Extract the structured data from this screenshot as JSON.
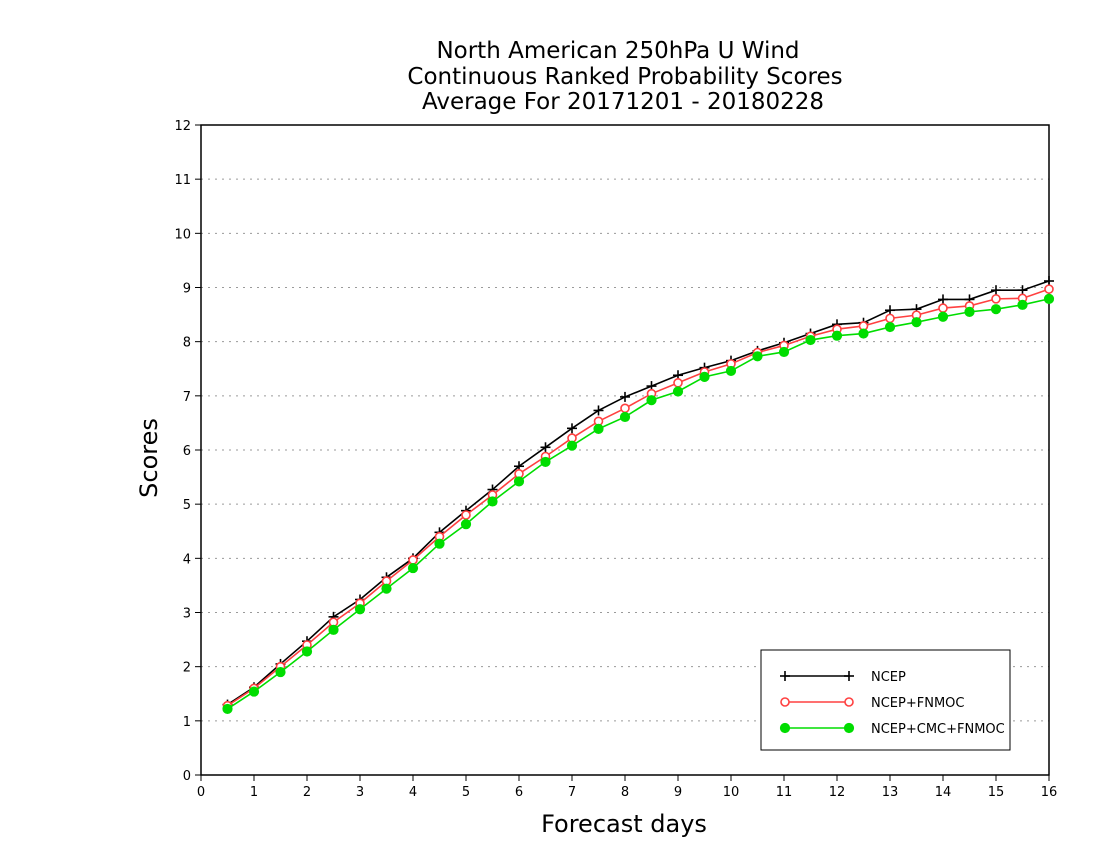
{
  "chart_data": {
    "type": "line",
    "title": [
      "North American 250hPa U Wind",
      "Continuous Ranked Probability Scores",
      "Average For 20171201 - 20180228"
    ],
    "xlabel": "Forecast days",
    "ylabel": "Scores",
    "xlim": [
      0,
      16
    ],
    "ylim": [
      0,
      12
    ],
    "xticks": [
      0,
      1,
      2,
      3,
      4,
      5,
      6,
      7,
      8,
      9,
      10,
      11,
      12,
      13,
      14,
      15,
      16
    ],
    "yticks": [
      0,
      1,
      2,
      3,
      4,
      5,
      6,
      7,
      8,
      9,
      10,
      11,
      12
    ],
    "grid": true,
    "legend_position": "bottom-right",
    "x": [
      0.5,
      1,
      1.5,
      2,
      2.5,
      3,
      3.5,
      4,
      4.5,
      5,
      5.5,
      6,
      6.5,
      7,
      7.5,
      8,
      8.5,
      9,
      9.5,
      10,
      10.5,
      11,
      11.5,
      12,
      12.5,
      13,
      13.5,
      14,
      14.5,
      15,
      15.5,
      16
    ],
    "series": [
      {
        "name": "NCEP",
        "color": "#000000",
        "marker": "plus",
        "values": [
          1.3,
          1.62,
          2.05,
          2.47,
          2.92,
          3.24,
          3.65,
          4.0,
          4.48,
          4.88,
          5.27,
          5.7,
          6.05,
          6.4,
          6.73,
          6.98,
          7.18,
          7.38,
          7.52,
          7.65,
          7.83,
          7.98,
          8.15,
          8.32,
          8.35,
          8.58,
          8.6,
          8.78,
          8.78,
          8.95,
          8.95,
          9.12
        ]
      },
      {
        "name": "NCEP+FNMOC",
        "color": "#ff4040",
        "marker": "open-circle",
        "values": [
          1.28,
          1.6,
          2.0,
          2.4,
          2.82,
          3.17,
          3.58,
          3.97,
          4.4,
          4.8,
          5.17,
          5.56,
          5.88,
          6.22,
          6.53,
          6.77,
          7.04,
          7.24,
          7.44,
          7.59,
          7.8,
          7.93,
          8.1,
          8.23,
          8.29,
          8.43,
          8.49,
          8.62,
          8.66,
          8.79,
          8.8,
          8.97
        ]
      },
      {
        "name": "NCEP+CMC+FNMOC",
        "color": "#00dd00",
        "marker": "filled-circle",
        "values": [
          1.22,
          1.54,
          1.9,
          2.28,
          2.68,
          3.06,
          3.44,
          3.82,
          4.27,
          4.63,
          5.05,
          5.42,
          5.78,
          6.08,
          6.39,
          6.61,
          6.92,
          7.08,
          7.35,
          7.46,
          7.73,
          7.81,
          8.03,
          8.11,
          8.15,
          8.27,
          8.36,
          8.46,
          8.55,
          8.6,
          8.68,
          8.79
        ]
      }
    ]
  }
}
